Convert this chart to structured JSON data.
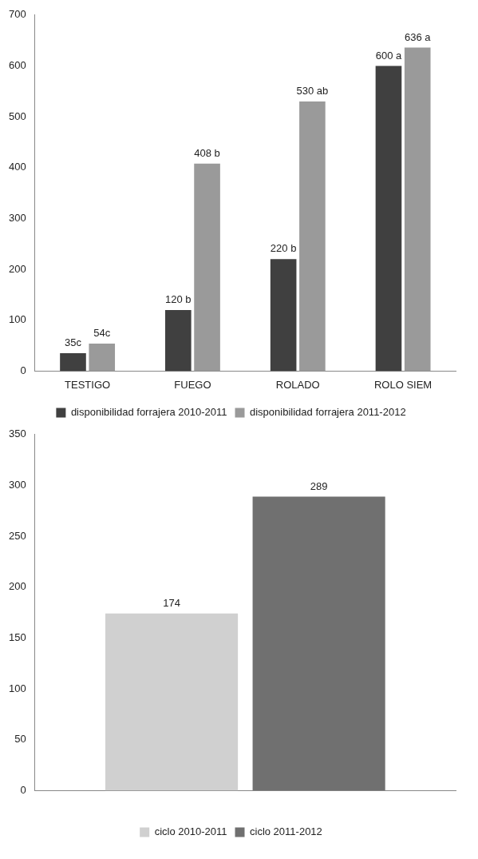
{
  "chart_data": [
    {
      "type": "bar",
      "categories": [
        "TESTIGO",
        "FUEGO",
        "ROLADO",
        "ROLO SIEM"
      ],
      "series": [
        {
          "name": "disponibilidad forrajera 2010-2011",
          "color": "#404040",
          "values": [
            35,
            120,
            220,
            600
          ],
          "value_labels": [
            "35c",
            "120 b",
            "220 b",
            "600 a"
          ]
        },
        {
          "name": "disponibilidad forrajera 2011-2012",
          "color": "#9a9a9a",
          "values": [
            54,
            408,
            530,
            636
          ],
          "value_labels": [
            "54c",
            "408 b",
            "530 ab",
            "636 a"
          ]
        }
      ],
      "ylim": [
        0,
        700
      ],
      "yticks": [
        0,
        100,
        200,
        300,
        400,
        500,
        600,
        700
      ],
      "grid": false,
      "legend": "bottom"
    },
    {
      "type": "bar",
      "categories": [
        null
      ],
      "series": [
        {
          "name": "ciclo 2010-2011",
          "color": "#d0d0d0",
          "values": [
            174
          ]
        },
        {
          "name": "ciclo 2011-2012",
          "color": "#707070",
          "values": [
            289
          ]
        }
      ],
      "ylim": [
        0,
        350
      ],
      "yticks": [
        0,
        50,
        100,
        150,
        200,
        250,
        300,
        350
      ],
      "grid": false,
      "legend": "bottom",
      "data_labels": true
    }
  ]
}
